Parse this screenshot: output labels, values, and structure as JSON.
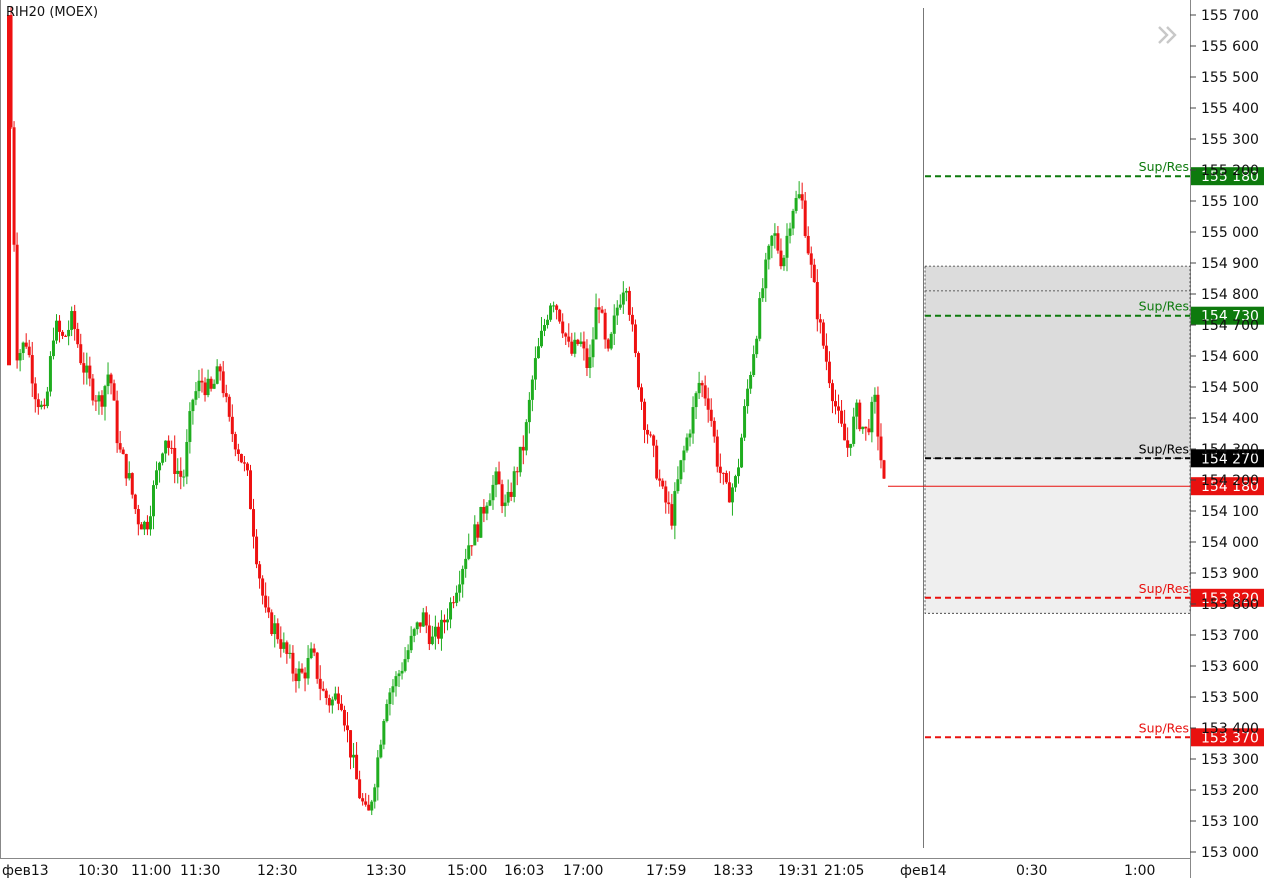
{
  "header": {
    "title": "RIH20 (MOEX)",
    "nav_label": "»"
  },
  "chart_data": {
    "type": "candlestick",
    "title": "RIH20 (MOEX)",
    "ylim": [
      153000,
      155700
    ],
    "y_ticks": [
      "155 700",
      "155 600",
      "155 500",
      "155 400",
      "155 300",
      "155 200",
      "155 100",
      "155 000",
      "154 900",
      "154 800",
      "154 700",
      "154 600",
      "154 500",
      "154 400",
      "154 300",
      "154 200",
      "154 100",
      "154 000",
      "153 900",
      "153 800",
      "153 700",
      "153 600",
      "153 500",
      "153 400",
      "153 300",
      "153 200",
      "153 100",
      "153 000"
    ],
    "x_ticks": [
      "фев13",
      "10:30",
      "11:00",
      "11:30",
      "12:30",
      "13:30",
      "15:00",
      "16:03",
      "17:00",
      "17:59",
      "18:33",
      "19:31",
      "21:05",
      "фев14",
      "0:30",
      "1:00"
    ],
    "last_price": {
      "label": "154 180",
      "value": 154180,
      "color": "#e8110f"
    },
    "levels": [
      {
        "name": "Sup/Res",
        "label": "155 180",
        "value": 155180,
        "color": "#0d7a0d"
      },
      {
        "name": "Sup/Res",
        "label": "154 730",
        "value": 154730,
        "color": "#0d7a0d"
      },
      {
        "name": "Sup/Res",
        "label": "154 270",
        "value": 154270,
        "color": "#000000"
      },
      {
        "name": "Sup/Res",
        "label": "153 820",
        "value": 153820,
        "color": "#e8110f"
      },
      {
        "name": "Sup/Res",
        "label": "153 370",
        "value": 153370,
        "color": "#e8110f"
      }
    ],
    "zones": [
      {
        "from": 154270,
        "to": 154890,
        "shade": "#dcdcdc"
      },
      {
        "from": 153770,
        "to": 154270,
        "shade": "#efefef"
      }
    ],
    "price_path": [
      [
        0.0,
        155700
      ],
      [
        1,
        154600
      ],
      [
        2,
        154650
      ],
      [
        3,
        154480
      ],
      [
        4,
        154400
      ],
      [
        5,
        154700
      ],
      [
        6,
        154650
      ],
      [
        7,
        154720
      ],
      [
        8,
        154580
      ],
      [
        9,
        154500
      ],
      [
        10,
        154450
      ],
      [
        11,
        154560
      ],
      [
        12,
        154300
      ],
      [
        13,
        154220
      ],
      [
        14,
        154080
      ],
      [
        15,
        154050
      ],
      [
        16,
        154200
      ],
      [
        17,
        154350
      ],
      [
        18,
        154250
      ],
      [
        19,
        154200
      ],
      [
        20,
        154460
      ],
      [
        21,
        154520
      ],
      [
        22,
        154480
      ],
      [
        23,
        154560
      ],
      [
        24,
        154380
      ],
      [
        25,
        154300
      ],
      [
        26,
        154200
      ],
      [
        27,
        153950
      ],
      [
        28,
        153750
      ],
      [
        29,
        153720
      ],
      [
        30,
        153650
      ],
      [
        31,
        153580
      ],
      [
        32,
        153570
      ],
      [
        33,
        153640
      ],
      [
        34,
        153520
      ],
      [
        35,
        153480
      ],
      [
        36,
        153520
      ],
      [
        37,
        153350
      ],
      [
        38,
        153200
      ],
      [
        39,
        153100
      ],
      [
        40,
        153280
      ],
      [
        41,
        153500
      ],
      [
        42,
        153550
      ],
      [
        43,
        153620
      ],
      [
        44,
        153700
      ],
      [
        45,
        153760
      ],
      [
        46,
        153680
      ],
      [
        47,
        153720
      ],
      [
        48,
        153800
      ],
      [
        49,
        153900
      ],
      [
        50,
        154000
      ],
      [
        51,
        154050
      ],
      [
        52,
        154150
      ],
      [
        53,
        154200
      ],
      [
        54,
        154100
      ],
      [
        55,
        154220
      ],
      [
        56,
        154320
      ],
      [
        57,
        154550
      ],
      [
        58,
        154680
      ],
      [
        59,
        154800
      ],
      [
        60,
        154720
      ],
      [
        61,
        154600
      ],
      [
        62,
        154650
      ],
      [
        63,
        154550
      ],
      [
        64,
        154800
      ],
      [
        65,
        154580
      ],
      [
        66,
        154750
      ],
      [
        67,
        154860
      ],
      [
        68,
        154600
      ],
      [
        69,
        154400
      ],
      [
        70,
        154280
      ],
      [
        71,
        154150
      ],
      [
        72,
        154080
      ],
      [
        73,
        154250
      ],
      [
        74,
        154380
      ],
      [
        75,
        154520
      ],
      [
        76,
        154450
      ],
      [
        77,
        154250
      ],
      [
        78,
        154150
      ],
      [
        79,
        154200
      ],
      [
        80,
        154450
      ],
      [
        81,
        154650
      ],
      [
        82,
        154850
      ],
      [
        83,
        155000
      ],
      [
        84,
        154900
      ],
      [
        85,
        155080
      ],
      [
        86,
        155120
      ],
      [
        87,
        154900
      ],
      [
        88,
        154700
      ],
      [
        89,
        154550
      ],
      [
        90,
        154400
      ],
      [
        91,
        154300
      ],
      [
        92,
        154420
      ],
      [
        93,
        154350
      ],
      [
        94,
        154450
      ],
      [
        95,
        154180
      ]
    ]
  }
}
